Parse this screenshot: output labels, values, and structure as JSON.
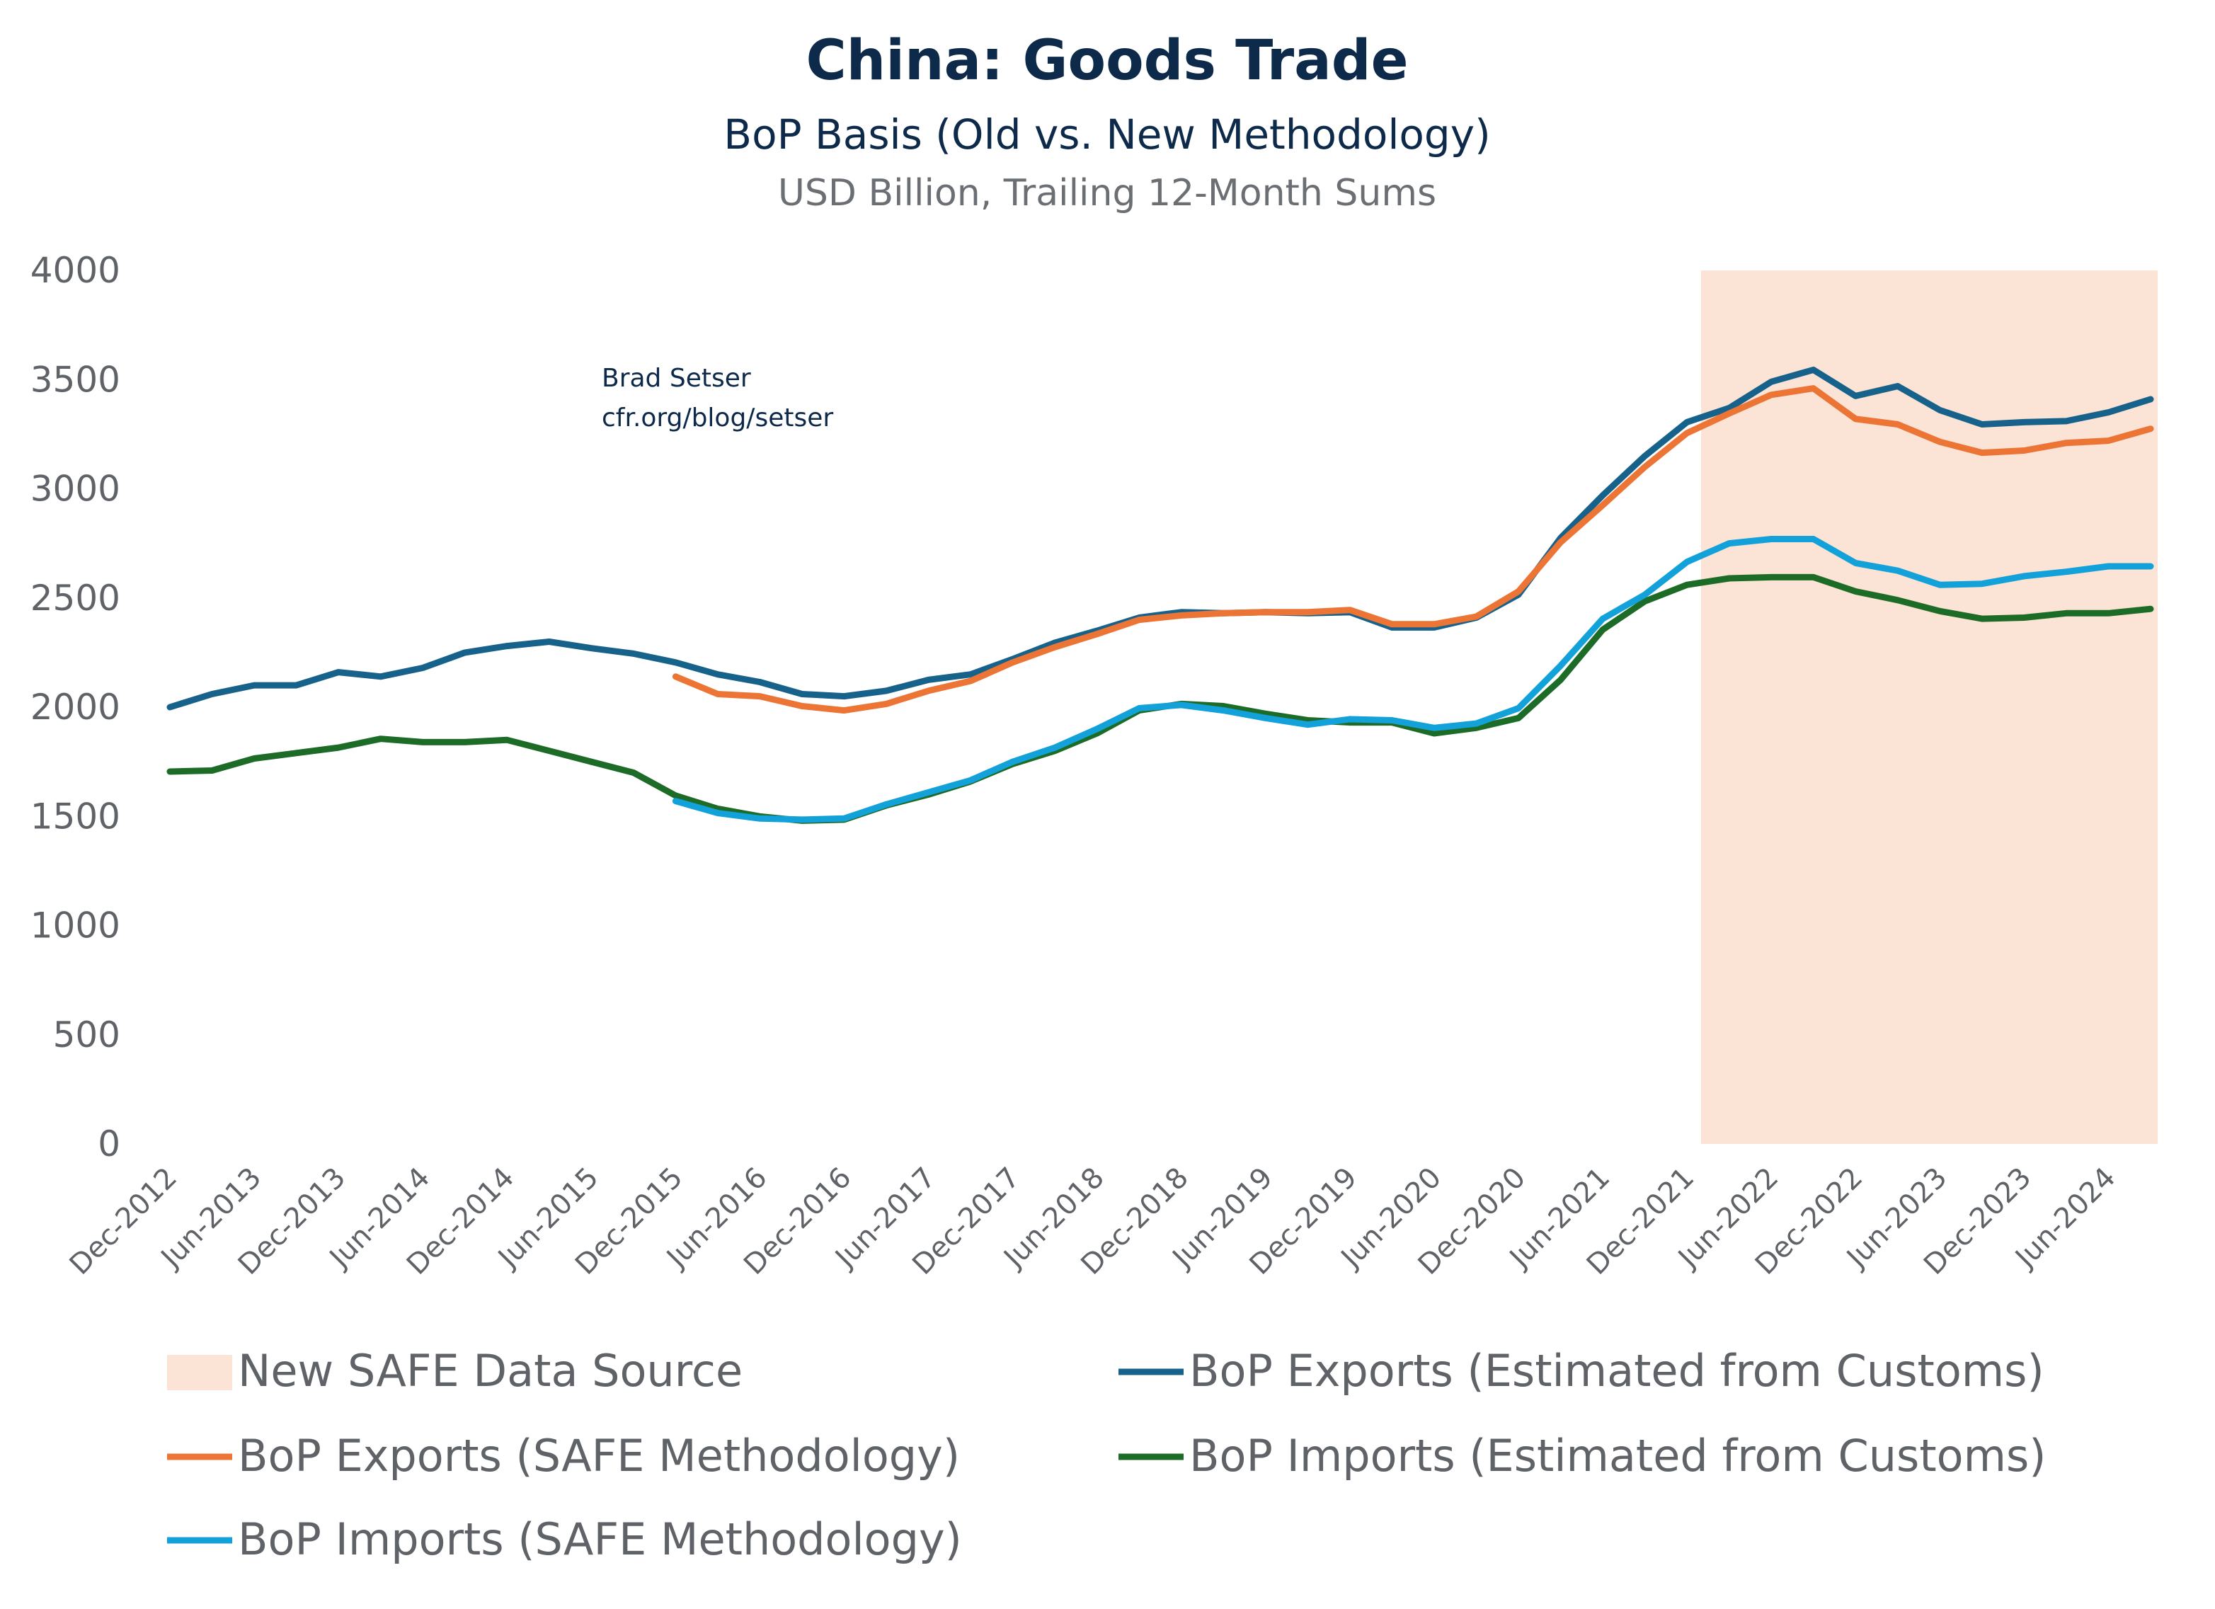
{
  "chart_data": {
    "type": "line",
    "title": "China: Goods Trade",
    "subtitle": "BoP Basis (Old vs. New Methodology)",
    "units": "USD Billion, Trailing 12-Month Sums",
    "annotation": [
      "Brad Setser",
      "cfr.org/blog/setser"
    ],
    "ylim": [
      0,
      4000
    ],
    "yticks": [
      0,
      500,
      1000,
      1500,
      2000,
      2500,
      3000,
      3500,
      4000
    ],
    "xtick_labels": [
      "Dec-2012",
      "Jun-2013",
      "Dec-2013",
      "Jun-2014",
      "Dec-2014",
      "Jun-2015",
      "Dec-2015",
      "Jun-2016",
      "Dec-2016",
      "Jun-2017",
      "Dec-2017",
      "Jun-2018",
      "Dec-2018",
      "Jun-2019",
      "Dec-2019",
      "Jun-2020",
      "Dec-2020",
      "Jun-2021",
      "Dec-2021",
      "Jun-2022",
      "Dec-2022",
      "Jun-2023",
      "Dec-2023",
      "Jun-2024"
    ],
    "grid": false,
    "legend_placement": "bottom",
    "shaded_region": {
      "name": "New SAFE Data Source",
      "from": "Jan-2022",
      "to": "Sep-2024",
      "color": "#fbe3d6"
    },
    "x": [
      "Dec-2012",
      "Mar-2013",
      "Jun-2013",
      "Sep-2013",
      "Dec-2013",
      "Mar-2014",
      "Jun-2014",
      "Sep-2014",
      "Dec-2014",
      "Mar-2015",
      "Jun-2015",
      "Sep-2015",
      "Dec-2015",
      "Mar-2016",
      "Jun-2016",
      "Sep-2016",
      "Dec-2016",
      "Mar-2017",
      "Jun-2017",
      "Sep-2017",
      "Dec-2017",
      "Mar-2018",
      "Jun-2018",
      "Sep-2018",
      "Dec-2018",
      "Mar-2019",
      "Jun-2019",
      "Sep-2019",
      "Dec-2019",
      "Mar-2020",
      "Jun-2020",
      "Sep-2020",
      "Dec-2020",
      "Mar-2021",
      "Jun-2021",
      "Sep-2021",
      "Dec-2021",
      "Mar-2022",
      "Jun-2022",
      "Sep-2022",
      "Dec-2022",
      "Mar-2023",
      "Jun-2023",
      "Sep-2023",
      "Dec-2023",
      "Mar-2024",
      "Jun-2024",
      "Sep-2024"
    ],
    "series": [
      {
        "name": "BoP Exports (Estimated from Customs)",
        "color": "#17628a",
        "values": [
          2000,
          2060,
          2100,
          2100,
          2160,
          2140,
          2180,
          2250,
          2280,
          2300,
          2270,
          2245,
          2205,
          2150,
          2115,
          2060,
          2050,
          2075,
          2125,
          2150,
          2220,
          2295,
          2350,
          2410,
          2435,
          2430,
          2435,
          2430,
          2435,
          2365,
          2365,
          2410,
          2515,
          2775,
          2970,
          3150,
          3305,
          3370,
          3490,
          3545,
          3425,
          3470,
          3360,
          3295,
          3305,
          3310,
          3350,
          3410
        ]
      },
      {
        "name": "BoP Exports (SAFE Methodology)",
        "color": "#ec7535",
        "values": [
          null,
          null,
          null,
          null,
          null,
          null,
          null,
          null,
          null,
          null,
          null,
          null,
          2140,
          2060,
          2050,
          2005,
          1985,
          2015,
          2075,
          2120,
          2205,
          2275,
          2335,
          2400,
          2420,
          2430,
          2435,
          2435,
          2445,
          2380,
          2380,
          2415,
          2530,
          2755,
          2925,
          3100,
          3255,
          3345,
          3430,
          3460,
          3320,
          3295,
          3215,
          3165,
          3175,
          3210,
          3220,
          3275
        ]
      },
      {
        "name": "BoP Imports (Estimated from Customs)",
        "color": "#1c6b27",
        "values": [
          1705,
          1710,
          1765,
          1790,
          1815,
          1855,
          1840,
          1840,
          1850,
          1800,
          1750,
          1700,
          1595,
          1535,
          1500,
          1480,
          1485,
          1550,
          1600,
          1660,
          1740,
          1800,
          1880,
          1985,
          2015,
          2005,
          1970,
          1940,
          1930,
          1930,
          1880,
          1905,
          1950,
          2125,
          2355,
          2485,
          2560,
          2590,
          2595,
          2595,
          2530,
          2490,
          2440,
          2405,
          2410,
          2430,
          2430,
          2450
        ]
      },
      {
        "name": "BoP Imports (SAFE Methodology)",
        "color": "#12a1d9",
        "values": [
          null,
          null,
          null,
          null,
          null,
          null,
          null,
          null,
          null,
          null,
          null,
          null,
          1570,
          1515,
          1490,
          1485,
          1490,
          1555,
          1610,
          1665,
          1750,
          1815,
          1900,
          1995,
          2010,
          1985,
          1950,
          1920,
          1945,
          1940,
          1905,
          1925,
          1995,
          2190,
          2405,
          2515,
          2665,
          2750,
          2770,
          2770,
          2660,
          2625,
          2560,
          2565,
          2600,
          2620,
          2645,
          2645
        ]
      }
    ],
    "legend_order": [
      "New SAFE Data Source",
      "BoP Exports (Estimated from Customs)",
      "BoP Exports (SAFE Methodology)",
      "BoP Imports (Estimated from Customs)",
      "BoP Imports (SAFE Methodology)"
    ]
  }
}
